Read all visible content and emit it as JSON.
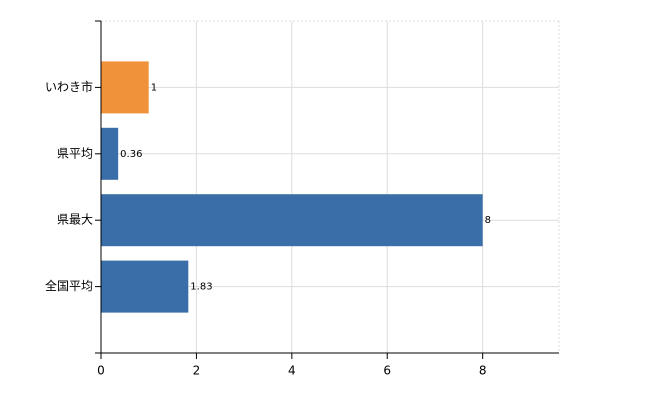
{
  "chart_data": {
    "type": "barh",
    "categories": [
      "いわき市",
      "県平均",
      "県最大",
      "全国平均"
    ],
    "values": [
      1,
      0.36,
      8,
      1.83
    ],
    "colors": [
      "#f0923a",
      "#3a6ea8",
      "#3a6ea8",
      "#3a6ea8"
    ],
    "xlim": [
      0,
      9.6
    ],
    "xticks": [
      0,
      2,
      4,
      6,
      8
    ],
    "grid": true
  }
}
